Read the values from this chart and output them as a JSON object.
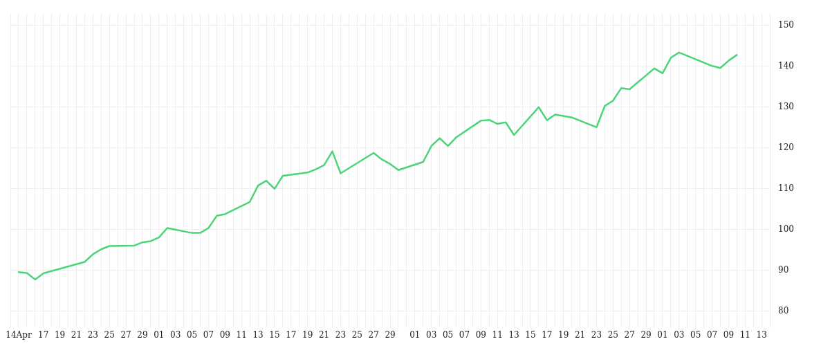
{
  "chart_data": {
    "type": "line",
    "x": [
      "--04-14",
      "--04-15",
      "--04-16",
      "--04-17",
      "--04-22",
      "--04-23",
      "--04-24",
      "--04-25",
      "--04-28",
      "--04-29",
      "--04-30",
      "--05-01",
      "--05-02",
      "--05-05",
      "--05-06",
      "--05-07",
      "--05-08",
      "--05-09",
      "--05-12",
      "--05-13",
      "--05-14",
      "--05-15",
      "--05-16",
      "--05-19",
      "--05-20",
      "--05-21",
      "--05-22",
      "--05-23",
      "--05-27",
      "--05-28",
      "--05-29",
      "--05-30",
      "--06-02",
      "--06-03",
      "--06-04",
      "--06-05",
      "--06-06",
      "--06-09",
      "--06-10",
      "--06-11",
      "--06-12",
      "--06-13",
      "--06-16",
      "--06-17",
      "--06-18",
      "--06-20",
      "--06-23",
      "--06-24",
      "--06-25",
      "--06-26",
      "--06-27",
      "--06-30",
      "--07-01",
      "--07-02",
      "--07-03",
      "--07-07",
      "--07-08",
      "--07-09",
      "--07-10"
    ],
    "series": [
      {
        "color": "#4cd47a",
        "values": [
          89.6,
          89.4,
          87.8,
          89.3,
          92.1,
          94.0,
          95.2,
          96.0,
          96.1,
          96.9,
          97.2,
          98.1,
          100.4,
          99.2,
          99.2,
          100.4,
          103.4,
          103.8,
          106.8,
          110.8,
          112.0,
          110.0,
          113.2,
          114.0,
          114.8,
          115.8,
          119.2,
          113.8,
          118.8,
          117.2,
          116.1,
          114.6,
          116.6,
          120.5,
          122.4,
          120.5,
          122.6,
          126.7,
          126.9,
          125.9,
          126.3,
          123.2,
          130.0,
          126.8,
          128.2,
          127.5,
          125.1,
          130.3,
          131.6,
          134.7,
          134.4,
          139.5,
          138.3,
          142.1,
          143.4,
          140.1,
          139.6,
          141.4,
          142.8
        ]
      }
    ],
    "xlim": [
      "--04-13",
      "--07-14"
    ],
    "xticks": [
      {
        "value": "--04-13",
        "label": null
      },
      {
        "value": "--04-14",
        "label": "14Apr"
      },
      {
        "value": "--04-15",
        "label": null
      },
      {
        "value": "--04-16",
        "label": null
      },
      {
        "value": "--04-17",
        "label": "17"
      },
      {
        "value": "--04-18",
        "label": null
      },
      {
        "value": "--04-19",
        "label": "19"
      },
      {
        "value": "--04-20",
        "label": null
      },
      {
        "value": "--04-21",
        "label": "21"
      },
      {
        "value": "--04-22",
        "label": null
      },
      {
        "value": "--04-23",
        "label": "23"
      },
      {
        "value": "--04-24",
        "label": null
      },
      {
        "value": "--04-25",
        "label": "25"
      },
      {
        "value": "--04-26",
        "label": null
      },
      {
        "value": "--04-27",
        "label": "27"
      },
      {
        "value": "--04-28",
        "label": null
      },
      {
        "value": "--04-29",
        "label": "29"
      },
      {
        "value": "--04-30",
        "label": null
      },
      {
        "value": "--05-01",
        "label": "01"
      },
      {
        "value": "--05-02",
        "label": null
      },
      {
        "value": "--05-03",
        "label": "03"
      },
      {
        "value": "--05-04",
        "label": null
      },
      {
        "value": "--05-05",
        "label": "05"
      },
      {
        "value": "--05-06",
        "label": null
      },
      {
        "value": "--05-07",
        "label": "07"
      },
      {
        "value": "--05-08",
        "label": null
      },
      {
        "value": "--05-09",
        "label": "09"
      },
      {
        "value": "--05-10",
        "label": null
      },
      {
        "value": "--05-11",
        "label": "11"
      },
      {
        "value": "--05-12",
        "label": null
      },
      {
        "value": "--05-13",
        "label": "13"
      },
      {
        "value": "--05-14",
        "label": null
      },
      {
        "value": "--05-15",
        "label": "15"
      },
      {
        "value": "--05-16",
        "label": null
      },
      {
        "value": "--05-17",
        "label": "17"
      },
      {
        "value": "--05-18",
        "label": null
      },
      {
        "value": "--05-19",
        "label": "19"
      },
      {
        "value": "--05-20",
        "label": null
      },
      {
        "value": "--05-21",
        "label": "21"
      },
      {
        "value": "--05-22",
        "label": null
      },
      {
        "value": "--05-23",
        "label": "23"
      },
      {
        "value": "--05-24",
        "label": null
      },
      {
        "value": "--05-25",
        "label": "25"
      },
      {
        "value": "--05-26",
        "label": null
      },
      {
        "value": "--05-27",
        "label": "27"
      },
      {
        "value": "--05-28",
        "label": null
      },
      {
        "value": "--05-29",
        "label": "29"
      },
      {
        "value": "--05-30",
        "label": null
      },
      {
        "value": "--05-31",
        "label": null
      },
      {
        "value": "--06-01",
        "label": "01"
      },
      {
        "value": "--06-02",
        "label": null
      },
      {
        "value": "--06-03",
        "label": "03"
      },
      {
        "value": "--06-04",
        "label": null
      },
      {
        "value": "--06-05",
        "label": "05"
      },
      {
        "value": "--06-06",
        "label": null
      },
      {
        "value": "--06-07",
        "label": "07"
      },
      {
        "value": "--06-08",
        "label": null
      },
      {
        "value": "--06-09",
        "label": "09"
      },
      {
        "value": "--06-10",
        "label": null
      },
      {
        "value": "--06-11",
        "label": "11"
      },
      {
        "value": "--06-12",
        "label": null
      },
      {
        "value": "--06-13",
        "label": "13"
      },
      {
        "value": "--06-14",
        "label": null
      },
      {
        "value": "--06-15",
        "label": "15"
      },
      {
        "value": "--06-16",
        "label": null
      },
      {
        "value": "--06-17",
        "label": "17"
      },
      {
        "value": "--06-18",
        "label": null
      },
      {
        "value": "--06-19",
        "label": "19"
      },
      {
        "value": "--06-20",
        "label": null
      },
      {
        "value": "--06-21",
        "label": "21"
      },
      {
        "value": "--06-22",
        "label": null
      },
      {
        "value": "--06-23",
        "label": "23"
      },
      {
        "value": "--06-24",
        "label": null
      },
      {
        "value": "--06-25",
        "label": "25"
      },
      {
        "value": "--06-26",
        "label": null
      },
      {
        "value": "--06-27",
        "label": "27"
      },
      {
        "value": "--06-28",
        "label": null
      },
      {
        "value": "--06-29",
        "label": "29"
      },
      {
        "value": "--06-30",
        "label": null
      },
      {
        "value": "--07-01",
        "label": "01"
      },
      {
        "value": "--07-02",
        "label": null
      },
      {
        "value": "--07-03",
        "label": "03"
      },
      {
        "value": "--07-04",
        "label": null
      },
      {
        "value": "--07-05",
        "label": "05"
      },
      {
        "value": "--07-06",
        "label": null
      },
      {
        "value": "--07-07",
        "label": "07"
      },
      {
        "value": "--07-08",
        "label": null
      },
      {
        "value": "--07-09",
        "label": "09"
      },
      {
        "value": "--07-10",
        "label": null
      },
      {
        "value": "--07-11",
        "label": "11"
      },
      {
        "value": "--07-12",
        "label": null
      },
      {
        "value": "--07-13",
        "label": "13"
      },
      {
        "value": "--07-14",
        "label": null
      }
    ],
    "ylim": [
      77,
      153
    ],
    "yticks": [
      80,
      90,
      100,
      110,
      120,
      130,
      140,
      150
    ],
    "grid": true,
    "marker": "none"
  }
}
